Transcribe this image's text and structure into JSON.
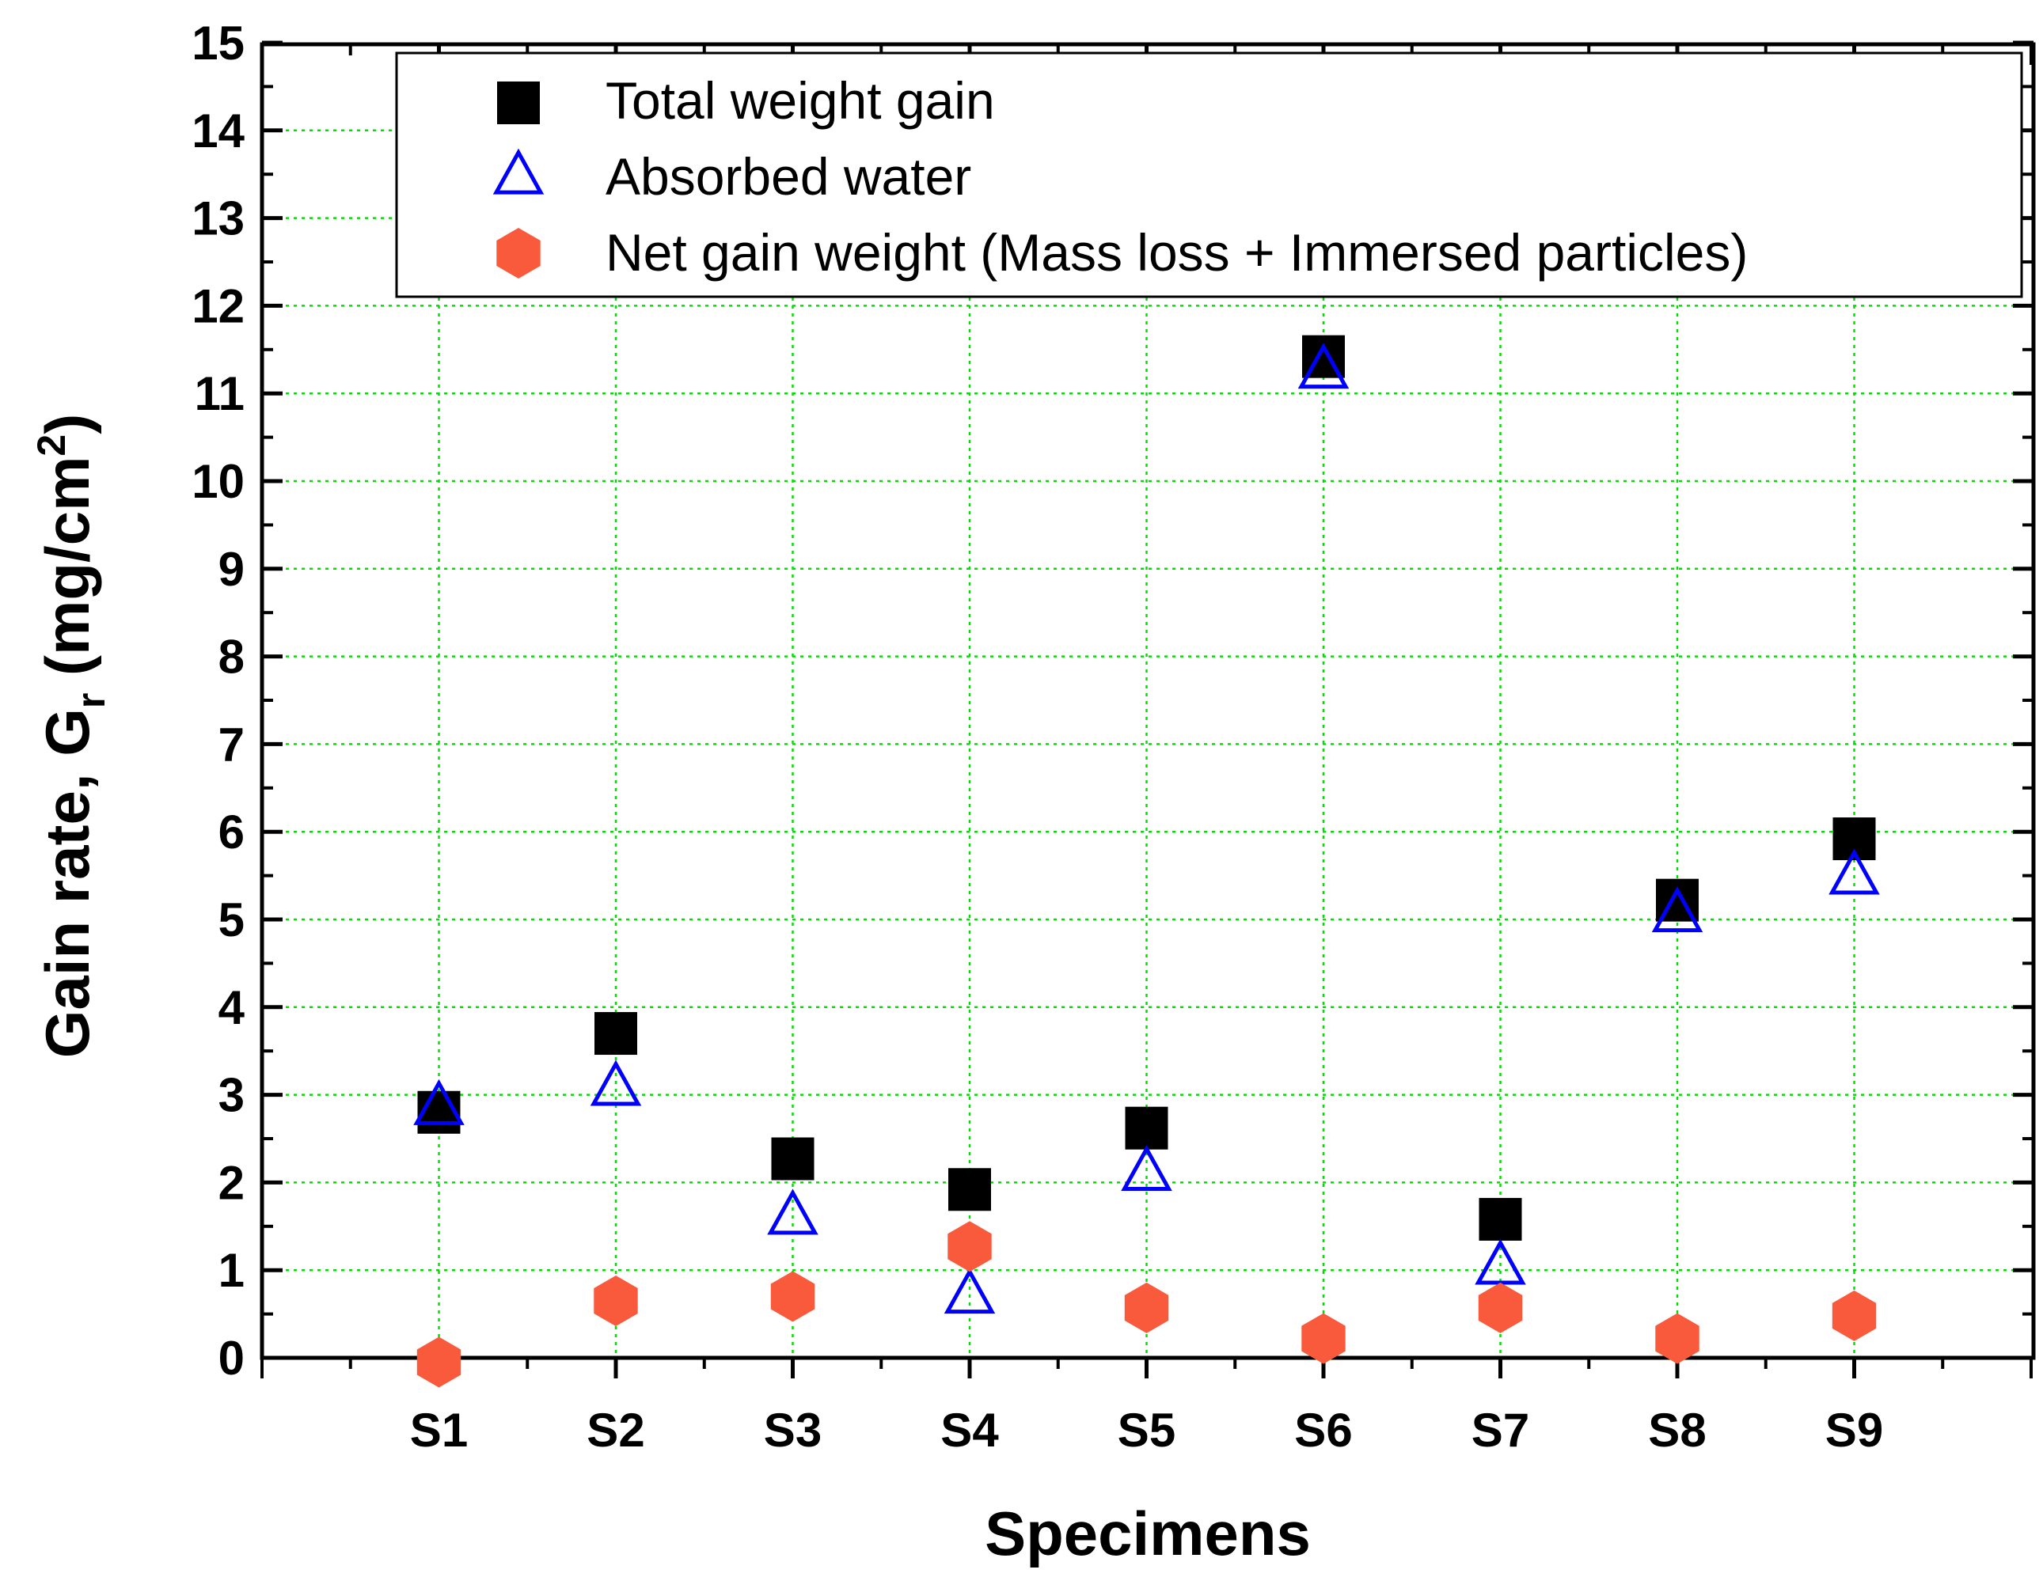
{
  "chart_data": {
    "type": "scatter",
    "title": "",
    "xlabel": "Specimens",
    "ylabel": {
      "main": "Gain rate, G",
      "subscript": "r",
      "unit_open": " (mg/cm",
      "superscript": "2",
      "unit_close": ")"
    },
    "categories": [
      "S1",
      "S2",
      "S3",
      "S4",
      "S5",
      "S6",
      "S7",
      "S8",
      "S9"
    ],
    "xlim": [
      0,
      10
    ],
    "ylim": [
      0,
      15
    ],
    "yticks": [
      "0",
      "1",
      "2",
      "3",
      "4",
      "5",
      "6",
      "7",
      "8",
      "9",
      "10",
      "11",
      "12",
      "13",
      "14",
      "15"
    ],
    "grid": true,
    "legend_position": "top-right",
    "series": [
      {
        "name": "Total weight gain",
        "marker": "square",
        "color": "#000000",
        "values": [
          2.8,
          3.7,
          2.27,
          1.92,
          2.62,
          11.42,
          1.58,
          5.22,
          5.92
        ]
      },
      {
        "name": "Absorbed water",
        "marker": "triangle-open",
        "color": "#0000ff",
        "values": [
          2.85,
          3.07,
          1.6,
          0.7,
          2.1,
          11.25,
          1.03,
          5.05,
          5.48
        ]
      },
      {
        "name": "Net gain weight (Mass loss + Immersed particles)",
        "marker": "hexagon",
        "color": "#fa5a3c",
        "values": [
          -0.05,
          0.65,
          0.7,
          1.27,
          0.57,
          0.22,
          0.57,
          0.22,
          0.48
        ]
      }
    ]
  }
}
